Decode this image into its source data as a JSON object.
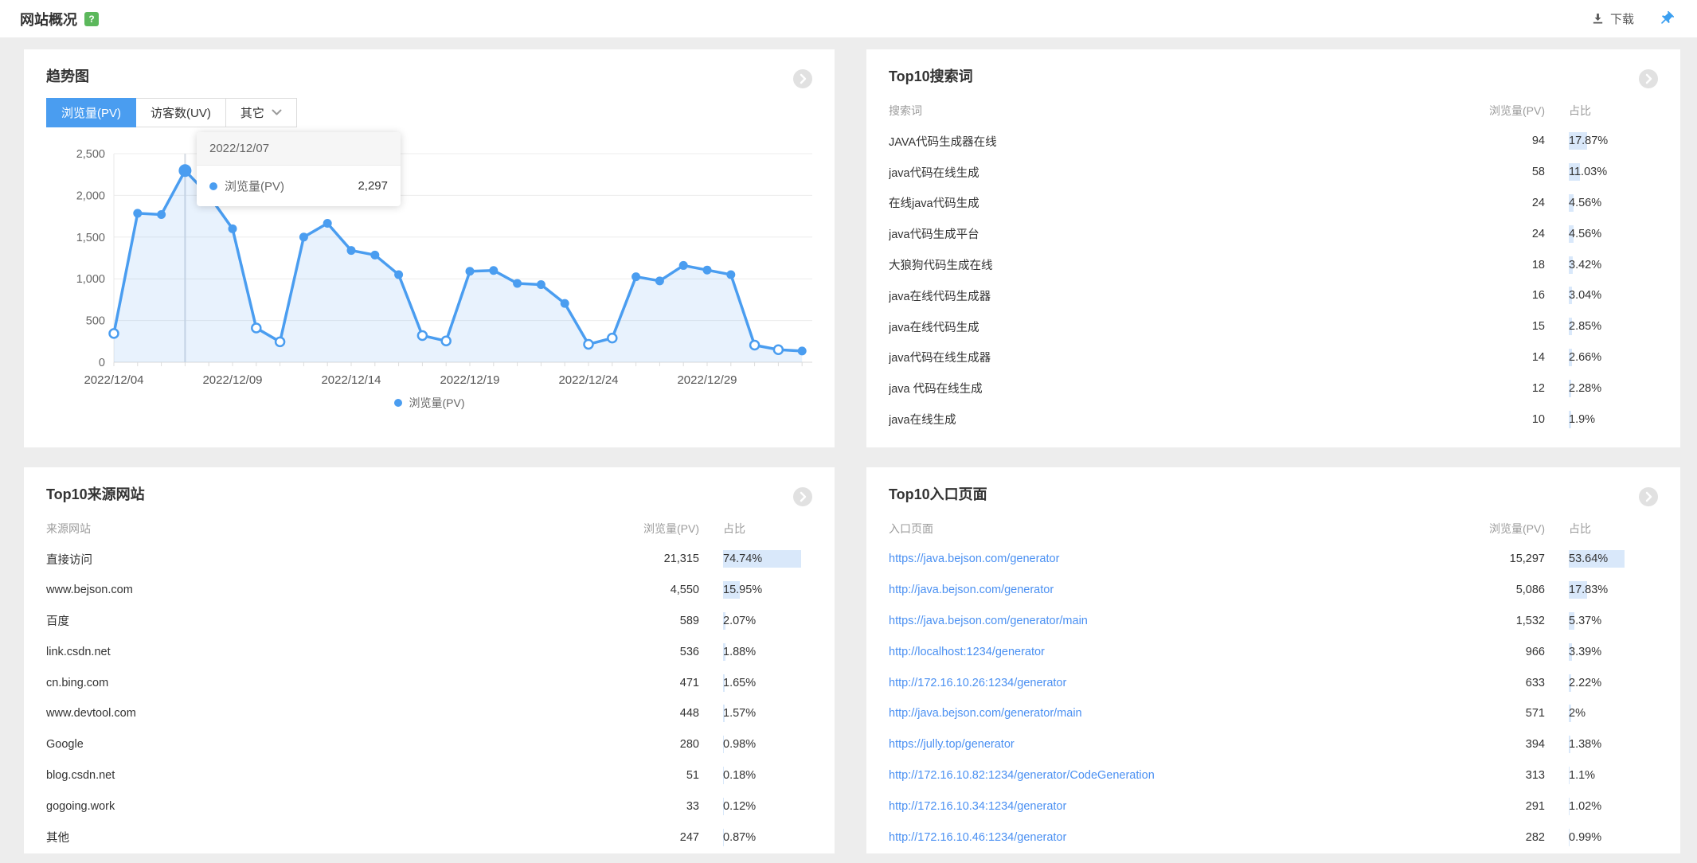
{
  "page": {
    "title": "网站概况",
    "help_badge": "?",
    "download_label": "下载"
  },
  "trend": {
    "title": "趋势图",
    "tabs": [
      {
        "label": "浏览量(PV)"
      },
      {
        "label": "访客数(UV)"
      },
      {
        "label": "其它"
      }
    ],
    "tooltip": {
      "date": "2022/12/07",
      "series": "浏览量(PV)",
      "value": "2,297"
    },
    "legend": "浏览量(PV)"
  },
  "chart_data": {
    "type": "line",
    "title": "趋势图",
    "x": [
      "2022/12/04",
      "2022/12/05",
      "2022/12/06",
      "2022/12/07",
      "2022/12/08",
      "2022/12/09",
      "2022/12/10",
      "2022/12/11",
      "2022/12/12",
      "2022/12/13",
      "2022/12/14",
      "2022/12/15",
      "2022/12/16",
      "2022/12/17",
      "2022/12/18",
      "2022/12/19",
      "2022/12/20",
      "2022/12/21",
      "2022/12/22",
      "2022/12/23",
      "2022/12/24",
      "2022/12/25",
      "2022/12/26",
      "2022/12/27",
      "2022/12/28",
      "2022/12/29",
      "2022/12/30",
      "2022/12/31",
      "2023/01/01",
      "2023/01/02"
    ],
    "series": [
      {
        "name": "浏览量(PV)",
        "values": [
          345,
          1785,
          1770,
          2297,
          2000,
          1600,
          410,
          245,
          1500,
          1665,
          1340,
          1285,
          1050,
          320,
          255,
          1090,
          1100,
          945,
          930,
          705,
          215,
          290,
          1025,
          975,
          1160,
          1105,
          1050,
          205,
          150,
          135
        ]
      }
    ],
    "hollow_indices": [
      0,
      6,
      7,
      13,
      14,
      20,
      21,
      27,
      28
    ],
    "highlight_index": 3,
    "highlight_value_label": "2,297",
    "ylim": [
      0,
      2500
    ],
    "y_tick_values": [
      0,
      500,
      1000,
      1500,
      2000,
      2500
    ],
    "y_tick_labels": [
      "0",
      "500",
      "1,000",
      "1,500",
      "2,000",
      "2,500"
    ],
    "x_tick_indices": [
      0,
      5,
      10,
      15,
      20,
      25
    ],
    "x_tick_labels": [
      "2022/12/04",
      "2022/12/09",
      "2022/12/14",
      "2022/12/19",
      "2022/12/24",
      "2022/12/29"
    ],
    "grid": true,
    "legend_position": "bottom",
    "colors": {
      "line": "#4a9df0",
      "fill": "rgba(74,157,240,0.13)",
      "highlight_line": "#d5dbe3"
    }
  },
  "panels": {
    "search_terms": {
      "title": "Top10搜索词",
      "col_name": "搜索词",
      "col_pv": "浏览量(PV)",
      "col_pct": "占比",
      "links": false,
      "rows": [
        {
          "name": "JAVA代码生成器在线",
          "pv": "94",
          "pct": "17.87%",
          "pct_value": 17.87
        },
        {
          "name": "java代码在线生成",
          "pv": "58",
          "pct": "11.03%",
          "pct_value": 11.03
        },
        {
          "name": "在线java代码生成",
          "pv": "24",
          "pct": "4.56%",
          "pct_value": 4.56
        },
        {
          "name": "java代码生成平台",
          "pv": "24",
          "pct": "4.56%",
          "pct_value": 4.56
        },
        {
          "name": "大狼狗代码生成在线",
          "pv": "18",
          "pct": "3.42%",
          "pct_value": 3.42
        },
        {
          "name": "java在线代码生成器",
          "pv": "16",
          "pct": "3.04%",
          "pct_value": 3.04
        },
        {
          "name": "java在线代码生成",
          "pv": "15",
          "pct": "2.85%",
          "pct_value": 2.85
        },
        {
          "name": "java代码在线生成器",
          "pv": "14",
          "pct": "2.66%",
          "pct_value": 2.66
        },
        {
          "name": "java 代码在线生成",
          "pv": "12",
          "pct": "2.28%",
          "pct_value": 2.28
        },
        {
          "name": "java在线生成",
          "pv": "10",
          "pct": "1.9%",
          "pct_value": 1.9
        }
      ]
    },
    "referrers": {
      "title": "Top10来源网站",
      "col_name": "来源网站",
      "col_pv": "浏览量(PV)",
      "col_pct": "占比",
      "links": false,
      "rows": [
        {
          "name": "直接访问",
          "pv": "21,315",
          "pct": "74.74%",
          "pct_value": 74.74
        },
        {
          "name": "www.bejson.com",
          "pv": "4,550",
          "pct": "15.95%",
          "pct_value": 15.95
        },
        {
          "name": "百度",
          "pv": "589",
          "pct": "2.07%",
          "pct_value": 2.07
        },
        {
          "name": "link.csdn.net",
          "pv": "536",
          "pct": "1.88%",
          "pct_value": 1.88
        },
        {
          "name": "cn.bing.com",
          "pv": "471",
          "pct": "1.65%",
          "pct_value": 1.65
        },
        {
          "name": "www.devtool.com",
          "pv": "448",
          "pct": "1.57%",
          "pct_value": 1.57
        },
        {
          "name": "Google",
          "pv": "280",
          "pct": "0.98%",
          "pct_value": 0.98
        },
        {
          "name": "blog.csdn.net",
          "pv": "51",
          "pct": "0.18%",
          "pct_value": 0.18
        },
        {
          "name": "gogoing.work",
          "pv": "33",
          "pct": "0.12%",
          "pct_value": 0.12
        },
        {
          "name": "其他",
          "pv": "247",
          "pct": "0.87%",
          "pct_value": 0.87
        }
      ]
    },
    "entry_pages": {
      "title": "Top10入口页面",
      "col_name": "入口页面",
      "col_pv": "浏览量(PV)",
      "col_pct": "占比",
      "links": true,
      "rows": [
        {
          "name": "https://java.bejson.com/generator",
          "pv": "15,297",
          "pct": "53.64%",
          "pct_value": 53.64
        },
        {
          "name": "http://java.bejson.com/generator",
          "pv": "5,086",
          "pct": "17.83%",
          "pct_value": 17.83
        },
        {
          "name": "https://java.bejson.com/generator/main",
          "pv": "1,532",
          "pct": "5.37%",
          "pct_value": 5.37
        },
        {
          "name": "http://localhost:1234/generator",
          "pv": "966",
          "pct": "3.39%",
          "pct_value": 3.39
        },
        {
          "name": "http://172.16.10.26:1234/generator",
          "pv": "633",
          "pct": "2.22%",
          "pct_value": 2.22
        },
        {
          "name": "http://java.bejson.com/generator/main",
          "pv": "571",
          "pct": "2%",
          "pct_value": 2
        },
        {
          "name": "https://jully.top/generator",
          "pv": "394",
          "pct": "1.38%",
          "pct_value": 1.38
        },
        {
          "name": "http://172.16.10.82:1234/generator/CodeGeneration",
          "pv": "313",
          "pct": "1.1%",
          "pct_value": 1.1
        },
        {
          "name": "http://172.16.10.34:1234/generator",
          "pv": "291",
          "pct": "1.02%",
          "pct_value": 1.02
        },
        {
          "name": "http://172.16.10.46:1234/generator",
          "pv": "282",
          "pct": "0.99%",
          "pct_value": 0.99
        }
      ]
    }
  }
}
